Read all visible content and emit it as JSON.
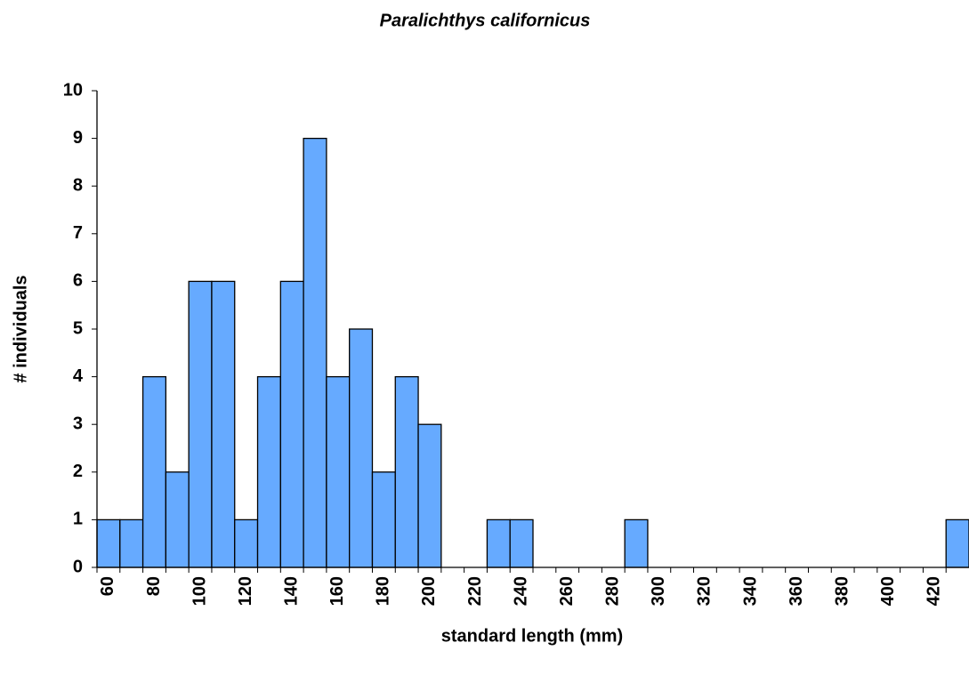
{
  "chart_data": {
    "type": "bar",
    "title": "Paralichthys californicus",
    "x_label": "standard length (mm)",
    "y_label": "# individuals",
    "categories": [
      "60",
      null,
      "80",
      null,
      "100",
      null,
      "120",
      null,
      "140",
      null,
      "160",
      null,
      "180",
      null,
      "200",
      null,
      "220",
      null,
      "240",
      null,
      "260",
      null,
      "280",
      null,
      "300",
      null,
      "320",
      null,
      "340",
      null,
      "360",
      null,
      "380",
      null,
      "400",
      null,
      "420",
      null
    ],
    "values": [
      1,
      1,
      4,
      2,
      6,
      6,
      1,
      4,
      6,
      9,
      4,
      5,
      2,
      4,
      3,
      0,
      0,
      1,
      1,
      0,
      0,
      0,
      0,
      1,
      0,
      0,
      0,
      0,
      0,
      0,
      0,
      0,
      0,
      0,
      0,
      0,
      0,
      1
    ],
    "color": "#66aaff",
    "ylim": [
      0,
      10
    ],
    "yticks": [
      0,
      1,
      2,
      3,
      4,
      5,
      6,
      7,
      8,
      9,
      10
    ],
    "grid": false
  }
}
